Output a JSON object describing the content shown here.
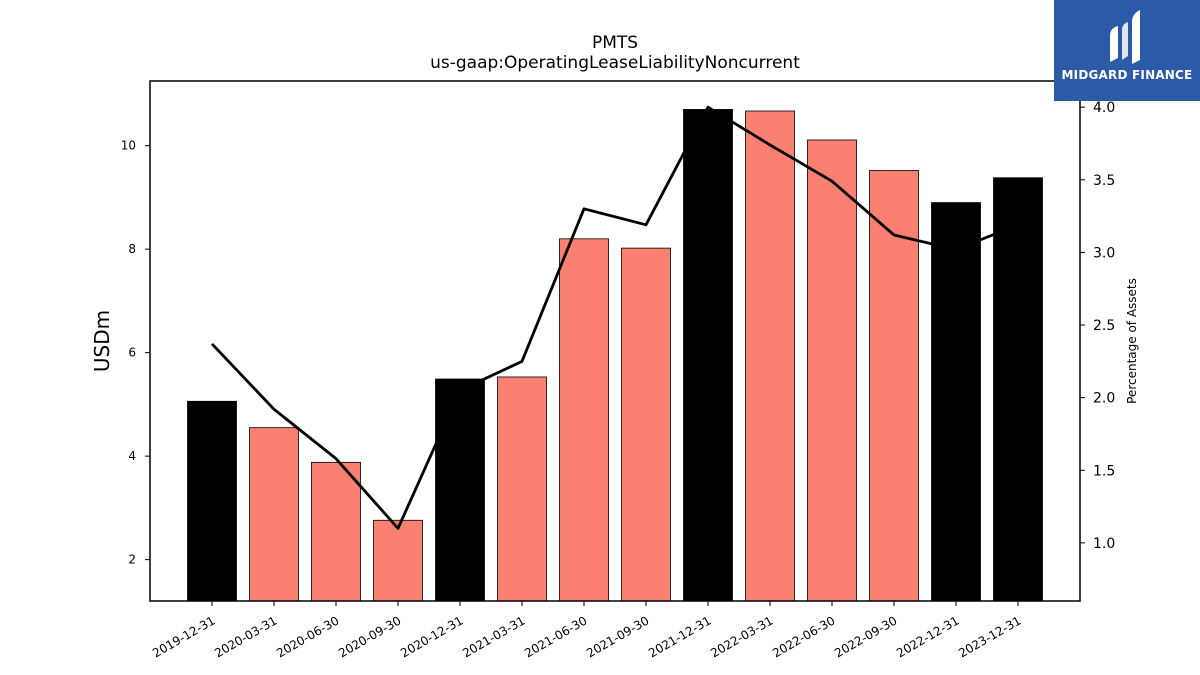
{
  "chart_data": {
    "type": "bar",
    "title": "PMTS",
    "subtitle": "us-gaap:OperatingLeaseLiabilityNoncurrent",
    "ylabel": "USDm",
    "y2label": "Percentage of Assets",
    "categories": [
      "2019-12-31",
      "2020-03-31",
      "2020-06-30",
      "2020-09-30",
      "2020-12-31",
      "2021-03-31",
      "2021-06-30",
      "2021-09-30",
      "2021-12-31",
      "2022-03-31",
      "2022-06-30",
      "2022-09-30",
      "2022-12-31",
      "2023-12-31"
    ],
    "series": [
      {
        "axis": "left",
        "kind": "bar",
        "values": [
          5.06,
          4.55,
          3.88,
          2.76,
          5.49,
          5.53,
          8.2,
          8.02,
          10.7,
          10.67,
          10.11,
          9.52,
          8.9,
          9.38
        ],
        "colors": [
          "#000000",
          "#fa8072",
          "#fa8072",
          "#fa8072",
          "#000000",
          "#fa8072",
          "#fa8072",
          "#fa8072",
          "#000000",
          "#fa8072",
          "#fa8072",
          "#fa8072",
          "#000000",
          "#000000"
        ]
      },
      {
        "axis": "right",
        "kind": "line",
        "color": "#000000",
        "values": [
          2.37,
          1.92,
          1.58,
          1.1,
          2.05,
          2.25,
          3.3,
          3.19,
          4.0,
          3.74,
          3.49,
          3.12,
          3.02,
          3.19
        ]
      }
    ],
    "ylim": [
      1.2,
      11.25
    ],
    "yticks": [
      2,
      4,
      6,
      8,
      10
    ],
    "y2lim": [
      0.6,
      4.18
    ],
    "y2ticks": [
      "1.0",
      "1.5",
      "2.0",
      "2.5",
      "3.0",
      "3.5",
      "4.0"
    ],
    "grid": false
  },
  "logo": {
    "text": "MIDGARD FINANCE"
  }
}
